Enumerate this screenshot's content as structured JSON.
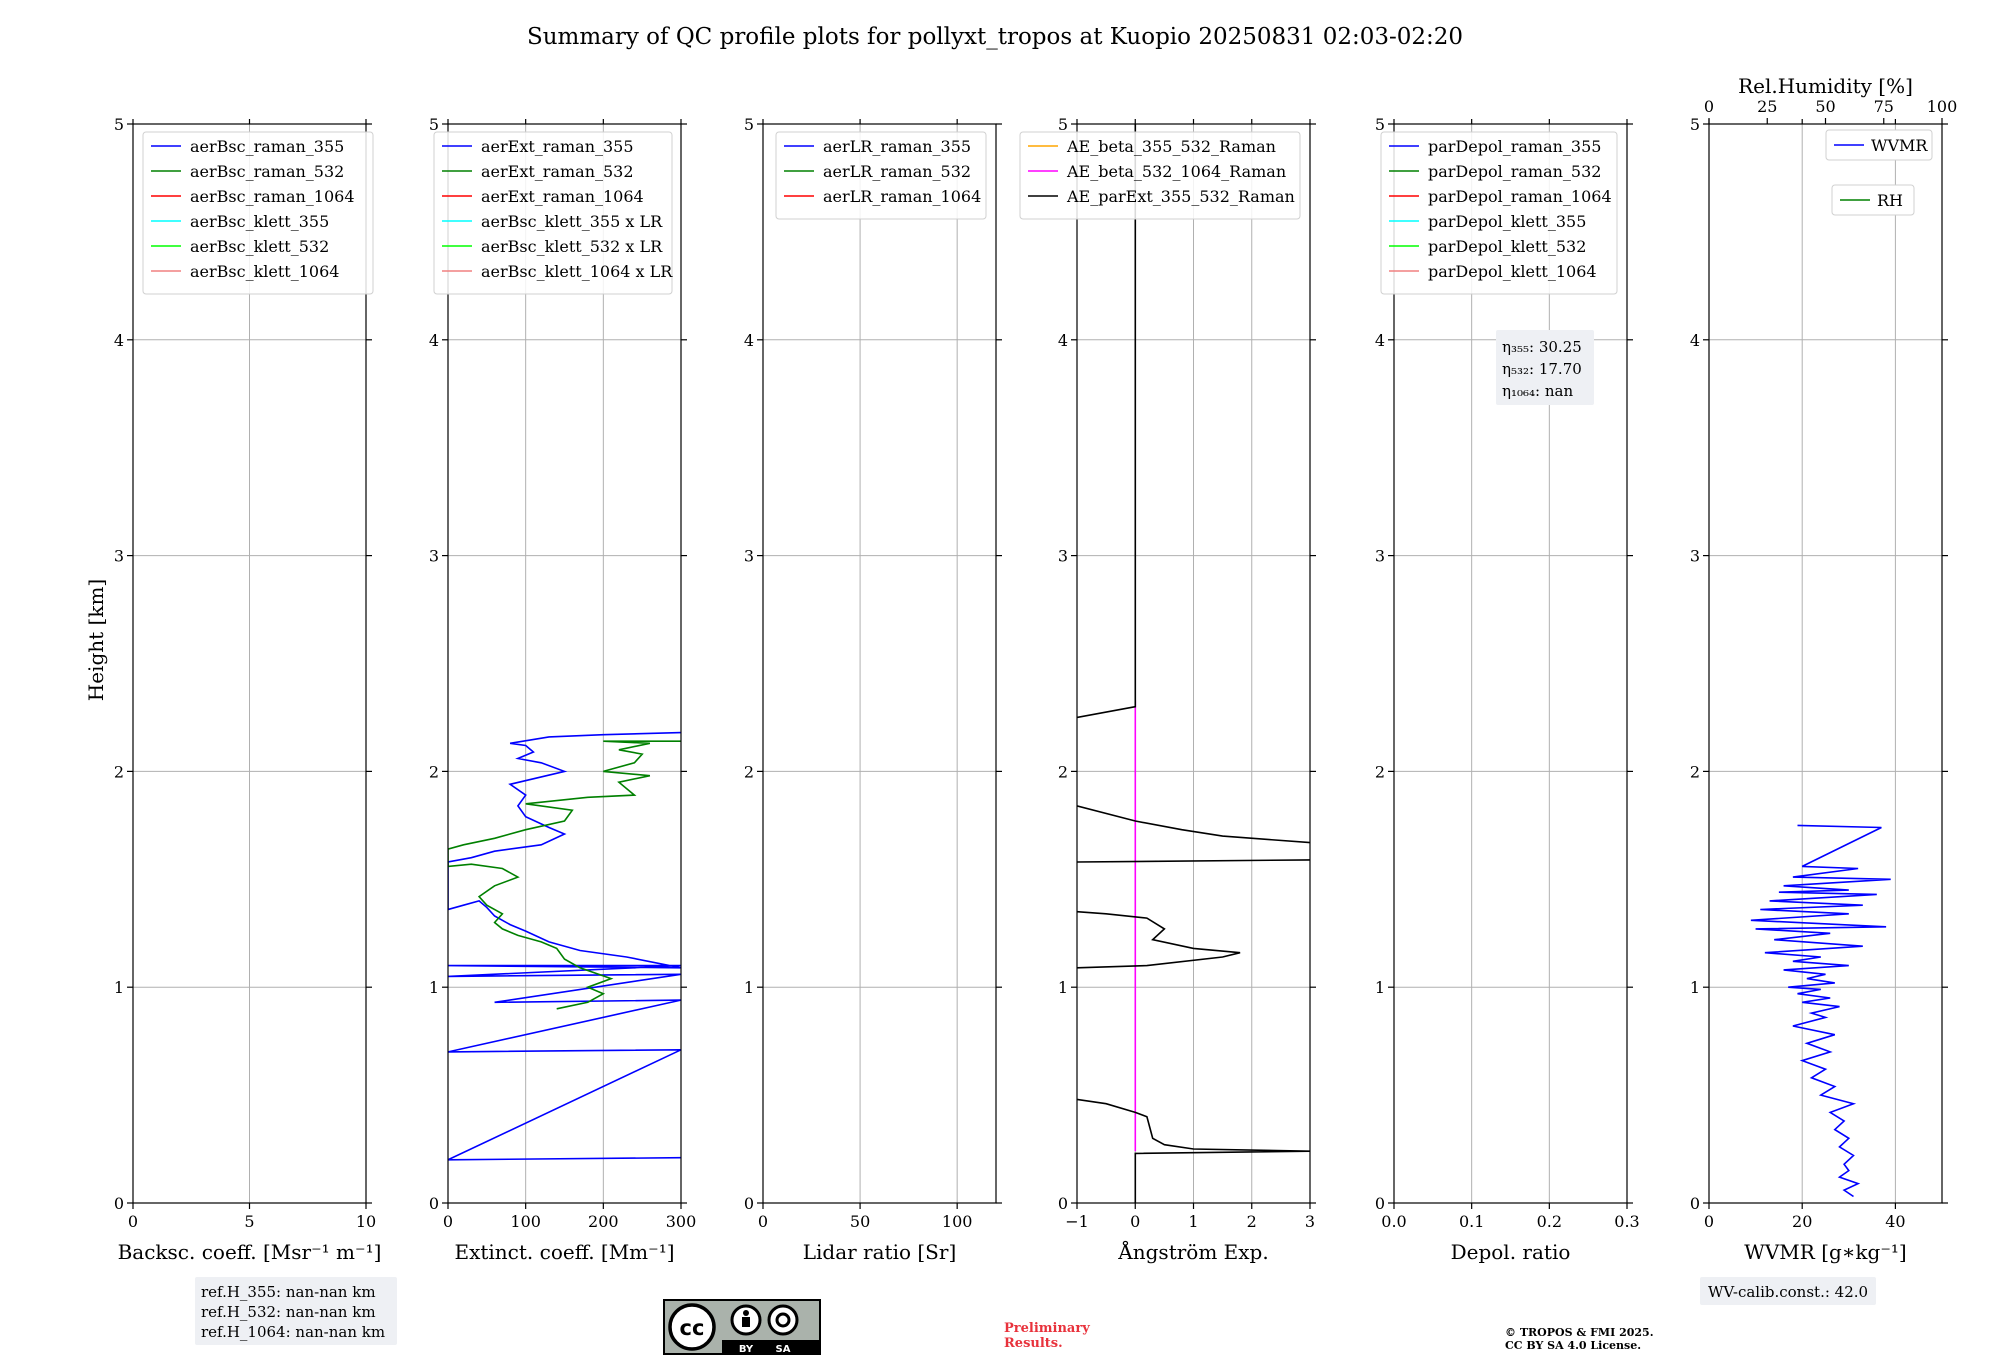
{
  "title": "Summary of QC profile plots for pollyxt_tropos at Kuopio 20250831 02:03-02:20",
  "ylabel": "Height [km]",
  "y_ticks": [
    "0",
    "1",
    "2",
    "3",
    "4",
    "5"
  ],
  "panels": [
    {
      "xlabel": "Backsc. coeff. [Msr⁻¹ m⁻¹]",
      "x_ticks": [
        "0",
        "5",
        "10"
      ],
      "legend": [
        "aerBsc_raman_355",
        "aerBsc_raman_532",
        "aerBsc_raman_1064",
        "aerBsc_klett_355",
        "aerBsc_klett_532",
        "aerBsc_klett_1064"
      ]
    },
    {
      "xlabel": "Extinct. coeff. [Mm⁻¹]",
      "x_ticks": [
        "0",
        "100",
        "200",
        "300"
      ],
      "legend": [
        "aerExt_raman_355",
        "aerExt_raman_532",
        "aerExt_raman_1064",
        "aerBsc_klett_355 x LR",
        "aerBsc_klett_532 x LR",
        "aerBsc_klett_1064 x LR"
      ]
    },
    {
      "xlabel": "Lidar ratio [Sr]",
      "x_ticks": [
        "0",
        "50",
        "100"
      ],
      "legend": [
        "aerLR_raman_355",
        "aerLR_raman_532",
        "aerLR_raman_1064"
      ]
    },
    {
      "xlabel": "Ångström Exp.",
      "x_ticks": [
        "−1",
        "0",
        "1",
        "2",
        "3"
      ],
      "legend": [
        "AE_beta_355_532_Raman",
        "AE_beta_532_1064_Raman",
        "AE_parExt_355_532_Raman"
      ]
    },
    {
      "xlabel": "Depol. ratio",
      "x_ticks": [
        "0.0",
        "0.1",
        "0.2",
        "0.3"
      ],
      "legend": [
        "parDepol_raman_355",
        "parDepol_raman_532",
        "parDepol_raman_1064",
        "parDepol_klett_355",
        "parDepol_klett_532",
        "parDepol_klett_1064"
      ],
      "eta": [
        "η₃₅₅: 30.25",
        "η₅₃₂: 17.70",
        "η₁₀₆₄: nan"
      ]
    },
    {
      "xlabel": "WVMR [g∗kg⁻¹]",
      "x_ticks": [
        "0",
        "20",
        "40"
      ],
      "top_label": "Rel.Humidity [%]",
      "top_ticks": [
        "0",
        "25",
        "50",
        "75",
        "100"
      ],
      "legend": [
        "WVMR",
        "RH"
      ]
    }
  ],
  "ref_heights": [
    "ref.H_355: nan-nan km",
    "ref.H_532: nan-nan km",
    "ref.H_1064: nan-nan km"
  ],
  "wv_calib": "WV-calib.const.: 42.0",
  "cc_badge": {
    "text": "cc",
    "by": "BY",
    "sa": "SA"
  },
  "preliminary": [
    "Preliminary",
    "Results."
  ],
  "copyright": [
    "© TROPOS & FMI 2025.",
    "CC BY SA 4.0 License."
  ],
  "colors": {
    "355": "#0000ff",
    "532": "#008000",
    "1064": "#ff0000",
    "klett_355": "#00ffff",
    "klett_532": "#00ff00",
    "klett_1064": "#f08080",
    "ae_355_532": "#ffa500",
    "ae_532_1064": "#ff00ff",
    "ae_ext": "#000000",
    "preliminary": "#e8323c"
  },
  "chart_data": [
    {
      "type": "line",
      "xlabel": "Backsc. coeff. [Msr⁻¹ m⁻¹]",
      "ylabel": "Height [km]",
      "xlim": [
        0,
        10
      ],
      "ylim": [
        0,
        5
      ],
      "grid": true,
      "legend": "top-left",
      "series": [
        {
          "name": "aerBsc_raman_355",
          "x": [],
          "y": []
        },
        {
          "name": "aerBsc_raman_532",
          "x": [],
          "y": []
        },
        {
          "name": "aerBsc_raman_1064",
          "x": [],
          "y": []
        },
        {
          "name": "aerBsc_klett_355",
          "x": [],
          "y": []
        },
        {
          "name": "aerBsc_klett_532",
          "x": [],
          "y": []
        },
        {
          "name": "aerBsc_klett_1064",
          "x": [],
          "y": []
        }
      ]
    },
    {
      "type": "line",
      "xlabel": "Extinct. coeff. [Mm⁻¹]",
      "ylabel": "Height [km]",
      "xlim": [
        0,
        300
      ],
      "ylim": [
        0,
        5
      ],
      "grid": true,
      "legend": "top-left",
      "series": [
        {
          "name": "aerExt_raman_355",
          "color": "#0000ff",
          "x": [
            300,
            0,
            300,
            0,
            300,
            60,
            300,
            0,
            300,
            0,
            300,
            230,
            170,
            130,
            100,
            80,
            60,
            50,
            40,
            20,
            0,
            0,
            30,
            60,
            120,
            150,
            130,
            100,
            90,
            100,
            80,
            150,
            120,
            90,
            110,
            100,
            80,
            130,
            200,
            300
          ],
          "y": [
            0.21,
            0.2,
            0.71,
            0.7,
            0.94,
            0.93,
            1.06,
            1.05,
            1.1,
            1.1,
            1.09,
            1.14,
            1.17,
            1.21,
            1.26,
            1.29,
            1.33,
            1.37,
            1.4,
            1.38,
            1.36,
            1.58,
            1.6,
            1.63,
            1.66,
            1.71,
            1.74,
            1.79,
            1.84,
            1.89,
            1.94,
            2.0,
            2.04,
            2.06,
            2.09,
            2.12,
            2.13,
            2.16,
            2.17,
            2.18
          ]
        },
        {
          "name": "aerExt_raman_532",
          "color": "#008000",
          "x": [
            140,
            180,
            200,
            180,
            210,
            170,
            150,
            140,
            120,
            90,
            70,
            60,
            70,
            50,
            40,
            60,
            90,
            70,
            30,
            0,
            0,
            20,
            60,
            100,
            150,
            160,
            100,
            180,
            240,
            220,
            260,
            200,
            240,
            250,
            220,
            260,
            200,
            300
          ],
          "y": [
            0.9,
            0.93,
            0.97,
            1.0,
            1.04,
            1.09,
            1.13,
            1.18,
            1.21,
            1.24,
            1.27,
            1.3,
            1.34,
            1.38,
            1.42,
            1.47,
            1.51,
            1.55,
            1.57,
            1.56,
            1.64,
            1.66,
            1.69,
            1.73,
            1.77,
            1.82,
            1.85,
            1.88,
            1.89,
            1.95,
            1.98,
            2.0,
            2.04,
            2.08,
            2.1,
            2.13,
            2.14,
            2.14
          ]
        },
        {
          "name": "aerExt_raman_1064",
          "x": [],
          "y": []
        },
        {
          "name": "aerBsc_klett_355 x LR",
          "x": [],
          "y": []
        },
        {
          "name": "aerBsc_klett_532 x LR",
          "x": [],
          "y": []
        },
        {
          "name": "aerBsc_klett_1064 x LR",
          "x": [],
          "y": []
        }
      ]
    },
    {
      "type": "line",
      "xlabel": "Lidar ratio [Sr]",
      "ylabel": "Height [km]",
      "xlim": [
        0,
        120
      ],
      "ylim": [
        0,
        5
      ],
      "grid": true,
      "legend": "top-right",
      "series": [
        {
          "name": "aerLR_raman_355",
          "x": [],
          "y": []
        },
        {
          "name": "aerLR_raman_532",
          "x": [],
          "y": []
        },
        {
          "name": "aerLR_raman_1064",
          "x": [],
          "y": []
        }
      ]
    },
    {
      "type": "line",
      "xlabel": "Ångström Exp.",
      "ylabel": "Height [km]",
      "xlim": [
        -1,
        3
      ],
      "ylim": [
        0,
        5
      ],
      "grid": true,
      "legend": "top-right",
      "series": [
        {
          "name": "AE_beta_355_532_Raman",
          "color": "#ffa500",
          "x": [],
          "y": []
        },
        {
          "name": "AE_beta_532_1064_Raman",
          "color": "#ff00ff",
          "x": [
            0,
            0
          ],
          "y": [
            0.24,
            2.33
          ]
        },
        {
          "name": "AE_parExt_355_532_Raman",
          "color": "#000000",
          "x": [
            0,
            0,
            3,
            1,
            0.5,
            0.3,
            0.25,
            0.2,
            0,
            -0.5,
            -1,
            null,
            -1,
            0.2,
            1.5,
            1.8,
            1.0,
            0.3,
            0.5,
            0.2,
            -0.5,
            -1,
            null,
            -1,
            3,
            null,
            3,
            1.5,
            0.8,
            0,
            -1,
            null,
            -1,
            0,
            0,
            0
          ],
          "y": [
            0,
            0.23,
            0.24,
            0.25,
            0.27,
            0.3,
            0.35,
            0.4,
            0.42,
            0.46,
            0.48,
            null,
            1.09,
            1.1,
            1.14,
            1.16,
            1.18,
            1.22,
            1.27,
            1.32,
            1.34,
            1.35,
            null,
            1.58,
            1.59,
            null,
            1.67,
            1.7,
            1.73,
            1.77,
            1.84,
            null,
            2.25,
            2.3,
            2.33,
            5
          ]
        }
      ]
    },
    {
      "type": "line",
      "xlabel": "Depol. ratio",
      "ylabel": "Height [km]",
      "xlim": [
        0,
        0.3
      ],
      "ylim": [
        0,
        5
      ],
      "grid": true,
      "legend": "top-right",
      "series": [
        {
          "name": "parDepol_raman_355",
          "x": [],
          "y": []
        },
        {
          "name": "parDepol_raman_532",
          "x": [],
          "y": []
        },
        {
          "name": "parDepol_raman_1064",
          "x": [],
          "y": []
        },
        {
          "name": "parDepol_klett_355",
          "x": [],
          "y": []
        },
        {
          "name": "parDepol_klett_532",
          "x": [],
          "y": []
        },
        {
          "name": "parDepol_klett_1064",
          "x": [],
          "y": []
        }
      ]
    },
    {
      "type": "line",
      "xlabel": "WVMR [g∗kg⁻¹]",
      "ylabel": "Height [km]",
      "xlim": [
        0,
        50
      ],
      "ylim": [
        0,
        5
      ],
      "grid": true,
      "legend": "top-right",
      "secondary_x": {
        "label": "Rel.Humidity [%]",
        "lim": [
          0,
          100
        ]
      },
      "series": [
        {
          "name": "WVMR",
          "color": "#0000ff",
          "x": [
            31,
            29,
            32,
            28,
            30,
            29,
            31,
            28,
            30,
            27,
            29,
            26,
            31,
            24,
            27,
            22,
            25,
            20,
            26,
            21,
            27,
            18,
            25,
            22,
            28,
            20,
            26,
            19,
            24,
            17,
            27,
            21,
            25,
            16,
            30,
            18,
            24,
            12,
            33,
            14,
            26,
            10,
            38,
            9,
            30,
            11,
            33,
            13,
            36,
            15,
            30,
            16,
            39,
            18,
            32,
            20,
            37,
            19
          ],
          "y": [
            0.03,
            0.06,
            0.09,
            0.12,
            0.15,
            0.18,
            0.22,
            0.26,
            0.3,
            0.34,
            0.38,
            0.42,
            0.46,
            0.5,
            0.54,
            0.58,
            0.62,
            0.66,
            0.7,
            0.74,
            0.78,
            0.82,
            0.86,
            0.88,
            0.91,
            0.93,
            0.95,
            0.97,
            0.99,
            1.0,
            1.02,
            1.04,
            1.06,
            1.08,
            1.1,
            1.12,
            1.14,
            1.16,
            1.19,
            1.22,
            1.25,
            1.27,
            1.28,
            1.31,
            1.34,
            1.36,
            1.38,
            1.4,
            1.43,
            1.44,
            1.45,
            1.47,
            1.5,
            1.51,
            1.55,
            1.56,
            1.74,
            1.75
          ]
        },
        {
          "name": "RH",
          "color": "#008000",
          "x": [],
          "y": []
        }
      ]
    }
  ]
}
